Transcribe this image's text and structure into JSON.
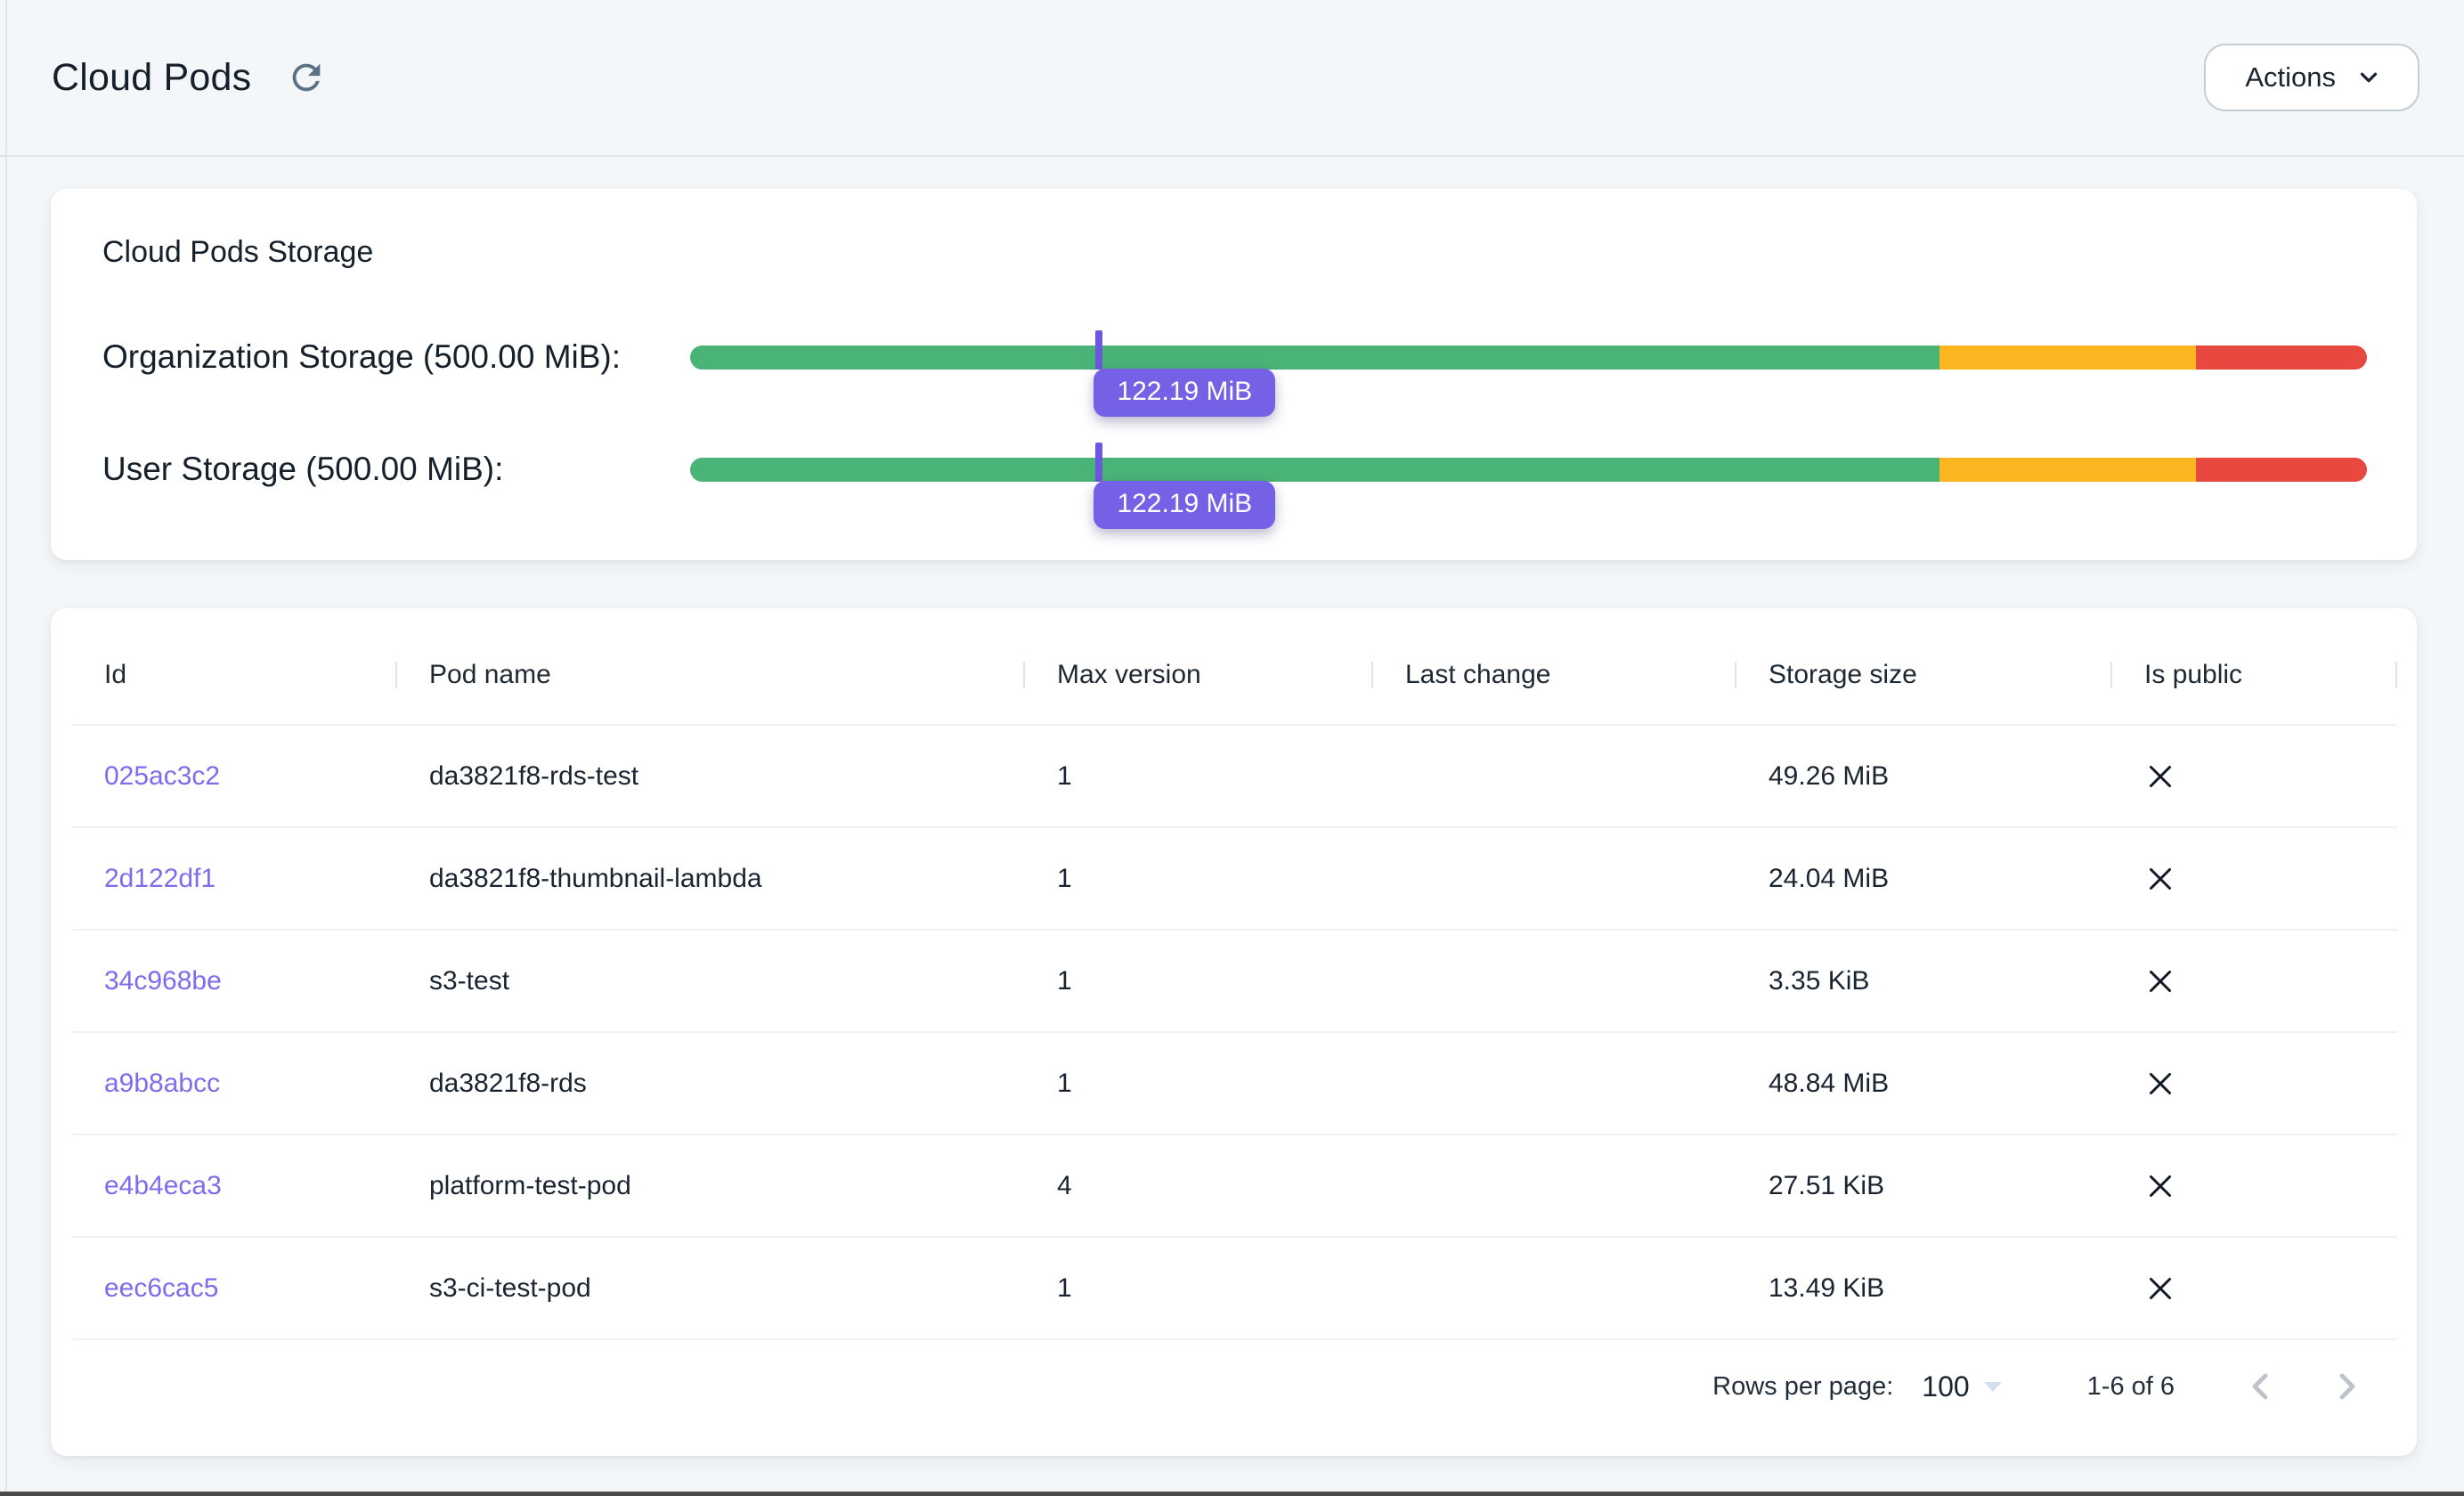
{
  "header": {
    "title": "Cloud Pods",
    "actions_button_label": "Actions"
  },
  "colors": {
    "green": "#4ab377",
    "amber": "#fbb622",
    "red": "#e7483f",
    "marker_purple": "#6d57dc",
    "badge_purple": "#7561e6",
    "link_purple": "#7e6bee",
    "page_background": "#f4f7fa"
  },
  "icons": {
    "refresh": "circular-arrow",
    "chevron_down": "v",
    "close_x": "✕",
    "chevron_left": "‹",
    "chevron_right": "›",
    "dropdown_arrow": "▾"
  },
  "storage_card": {
    "title": "Cloud Pods Storage",
    "bars": [
      {
        "label": "Organization Storage (500.00 MiB):",
        "tooltip": "122.19 MiB",
        "capacity": "500.00 MiB",
        "used": "122.19 MiB",
        "marker_percent": 24.4,
        "segments": [
          {
            "color": "green",
            "percent": 74.5
          },
          {
            "color": "amber",
            "percent": 15.3
          },
          {
            "color": "red",
            "percent": 10.2
          }
        ]
      },
      {
        "label": "User Storage (500.00 MiB):",
        "tooltip": "122.19 MiB",
        "capacity": "500.00 MiB",
        "used": "122.19 MiB",
        "marker_percent": 24.4,
        "segments": [
          {
            "color": "green",
            "percent": 74.5
          },
          {
            "color": "amber",
            "percent": 15.3
          },
          {
            "color": "red",
            "percent": 10.2
          }
        ]
      }
    ]
  },
  "table": {
    "columns": [
      "Id",
      "Pod name",
      "Max version",
      "Last change",
      "Storage size",
      "Is public"
    ],
    "rows": [
      {
        "id": "025ac3c2",
        "pod_name": "da3821f8-rds-test",
        "max_version": "1",
        "last_change": "",
        "storage_size": "49.26 MiB",
        "is_public": false
      },
      {
        "id": "2d122df1",
        "pod_name": "da3821f8-thumbnail-lambda",
        "max_version": "1",
        "last_change": "",
        "storage_size": "24.04 MiB",
        "is_public": false
      },
      {
        "id": "34c968be",
        "pod_name": "s3-test",
        "max_version": "1",
        "last_change": "",
        "storage_size": "3.35 KiB",
        "is_public": false
      },
      {
        "id": "a9b8abcc",
        "pod_name": "da3821f8-rds",
        "max_version": "1",
        "last_change": "",
        "storage_size": "48.84 MiB",
        "is_public": false
      },
      {
        "id": "e4b4eca3",
        "pod_name": "platform-test-pod",
        "max_version": "4",
        "last_change": "",
        "storage_size": "27.51 KiB",
        "is_public": false
      },
      {
        "id": "eec6cac5",
        "pod_name": "s3-ci-test-pod",
        "max_version": "1",
        "last_change": "",
        "storage_size": "13.49 KiB",
        "is_public": false
      }
    ],
    "pagination": {
      "rows_per_page_label": "Rows per page:",
      "rows_per_page_value": "100",
      "range_label": "1-6 of 6"
    }
  }
}
